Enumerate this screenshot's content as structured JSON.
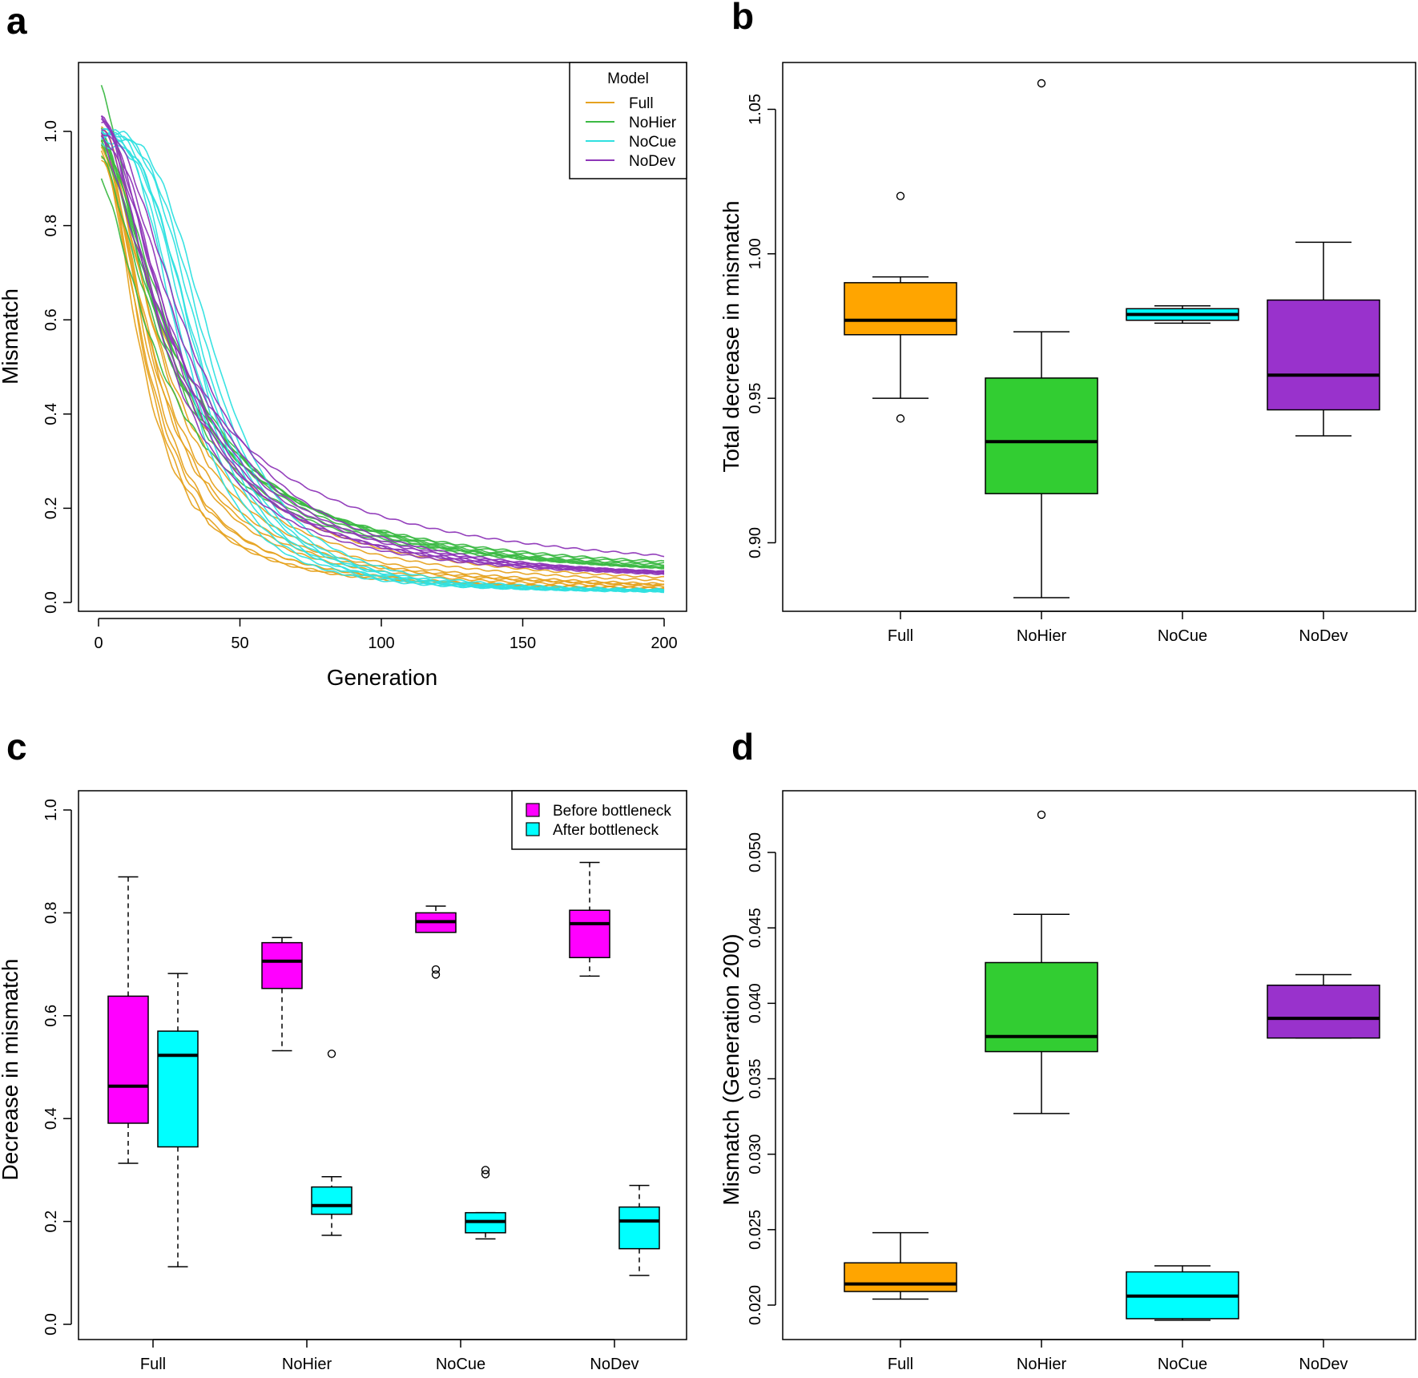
{
  "figure": {
    "panel_letters": [
      "a",
      "b",
      "c",
      "d"
    ]
  },
  "chart_data": [
    {
      "panel": "a",
      "type": "line",
      "xlabel": "Generation",
      "ylabel": "Mismatch",
      "xlim": [
        0,
        200
      ],
      "ylim": [
        0,
        1.1
      ],
      "xticks": [
        "0",
        "50",
        "100",
        "150",
        "200"
      ],
      "yticks": [
        "0.0",
        "0.2",
        "0.4",
        "0.6",
        "0.8",
        "1.0"
      ],
      "legend": {
        "title": "Model",
        "position": "top-right",
        "entries": [
          {
            "label": "Full",
            "color": "#e6a21f"
          },
          {
            "label": "NoHier",
            "color": "#3cb944"
          },
          {
            "label": "NoCue",
            "color": "#2fe0e0"
          },
          {
            "label": "NoDev",
            "color": "#8e36b8"
          }
        ]
      },
      "series": [
        {
          "name": "Full",
          "color": "#e6a21f",
          "runs": [
            {
              "start": 0.98,
              "end": 0.02,
              "half": 16,
              "shape": 1.9
            },
            {
              "start": 0.96,
              "end": 0.021,
              "half": 18,
              "shape": 1.9
            },
            {
              "start": 1.0,
              "end": 0.022,
              "half": 20,
              "shape": 1.8
            },
            {
              "start": 0.95,
              "end": 0.02,
              "half": 22,
              "shape": 1.8
            },
            {
              "start": 0.99,
              "end": 0.021,
              "half": 24,
              "shape": 1.7
            },
            {
              "start": 0.97,
              "end": 0.022,
              "half": 19,
              "shape": 2.0
            },
            {
              "start": 1.02,
              "end": 0.023,
              "half": 26,
              "shape": 1.7
            },
            {
              "start": 0.94,
              "end": 0.021,
              "half": 21,
              "shape": 1.9
            },
            {
              "start": 1.0,
              "end": 0.02,
              "half": 23,
              "shape": 1.8
            },
            {
              "start": 0.98,
              "end": 0.024,
              "half": 17,
              "shape": 2.0
            }
          ]
        },
        {
          "name": "NoHier",
          "color": "#3cb944",
          "runs": [
            {
              "start": 1.1,
              "end": 0.051,
              "half": 22,
              "shape": 1.6
            },
            {
              "start": 0.91,
              "end": 0.04,
              "half": 24,
              "shape": 1.5
            },
            {
              "start": 0.96,
              "end": 0.046,
              "half": 26,
              "shape": 1.5
            },
            {
              "start": 1.0,
              "end": 0.038,
              "half": 28,
              "shape": 1.6
            },
            {
              "start": 0.98,
              "end": 0.037,
              "half": 30,
              "shape": 1.7
            },
            {
              "start": 1.02,
              "end": 0.042,
              "half": 25,
              "shape": 1.5
            },
            {
              "start": 0.99,
              "end": 0.036,
              "half": 27,
              "shape": 1.6
            },
            {
              "start": 0.97,
              "end": 0.033,
              "half": 29,
              "shape": 1.6
            }
          ]
        },
        {
          "name": "NoCue",
          "color": "#2fe0e0",
          "runs": [
            {
              "start": 1.0,
              "end": 0.021,
              "half": 30,
              "shape": 3.0
            },
            {
              "start": 0.99,
              "end": 0.02,
              "half": 32,
              "shape": 3.0
            },
            {
              "start": 1.0,
              "end": 0.022,
              "half": 34,
              "shape": 3.1
            },
            {
              "start": 0.98,
              "end": 0.019,
              "half": 36,
              "shape": 3.2
            },
            {
              "start": 1.0,
              "end": 0.02,
              "half": 38,
              "shape": 3.2
            },
            {
              "start": 0.99,
              "end": 0.021,
              "half": 40,
              "shape": 3.3
            },
            {
              "start": 1.0,
              "end": 0.022,
              "half": 42,
              "shape": 3.3
            },
            {
              "start": 0.97,
              "end": 0.019,
              "half": 37,
              "shape": 3.1
            }
          ]
        },
        {
          "name": "NoDev",
          "color": "#8e36b8",
          "runs": [
            {
              "start": 1.04,
              "end": 0.039,
              "half": 24,
              "shape": 1.8
            },
            {
              "start": 1.01,
              "end": 0.041,
              "half": 26,
              "shape": 1.8
            },
            {
              "start": 1.03,
              "end": 0.038,
              "half": 28,
              "shape": 1.9
            },
            {
              "start": 0.99,
              "end": 0.04,
              "half": 30,
              "shape": 1.9
            },
            {
              "start": 1.0,
              "end": 0.042,
              "half": 32,
              "shape": 2.0
            },
            {
              "start": 1.02,
              "end": 0.037,
              "half": 34,
              "shape": 2.0
            },
            {
              "start": 1.0,
              "end": 0.039,
              "half": 29,
              "shape": 1.4
            },
            {
              "start": 1.03,
              "end": 0.041,
              "half": 27,
              "shape": 1.9
            }
          ]
        }
      ]
    },
    {
      "panel": "b",
      "type": "box",
      "xlabel": "",
      "ylabel": "Total decrease in mismatch",
      "ylim": [
        0.881,
        1.061
      ],
      "yticks": [
        "0.90",
        "0.95",
        "1.00",
        "1.05"
      ],
      "ytick_values": [
        0.9,
        0.95,
        1.0,
        1.05
      ],
      "categories": [
        "Full",
        "NoHier",
        "NoCue",
        "NoDev"
      ],
      "boxes": [
        {
          "name": "Full",
          "color": "#ffa500",
          "lo": 0.95,
          "q1": 0.972,
          "median": 0.977,
          "q3": 0.99,
          "hi": 0.992,
          "outliers": [
            1.02,
            0.943
          ]
        },
        {
          "name": "NoHier",
          "color": "#32cd32",
          "lo": 0.881,
          "q1": 0.917,
          "median": 0.935,
          "q3": 0.957,
          "hi": 0.973,
          "outliers": [
            1.059
          ]
        },
        {
          "name": "NoCue",
          "color": "#00ffff",
          "lo": 0.976,
          "q1": 0.977,
          "median": 0.979,
          "q3": 0.981,
          "hi": 0.982,
          "outliers": []
        },
        {
          "name": "NoDev",
          "color": "#9932cc",
          "lo": 0.937,
          "q1": 0.946,
          "median": 0.958,
          "q3": 0.984,
          "hi": 1.004,
          "outliers": []
        }
      ]
    },
    {
      "panel": "c",
      "type": "box",
      "xlabel": "",
      "ylabel": "Decrease in mismatch",
      "ylim": [
        0.0,
        1.0
      ],
      "yticks": [
        "0.0",
        "0.2",
        "0.4",
        "0.6",
        "0.8",
        "1.0"
      ],
      "ytick_values": [
        0.0,
        0.2,
        0.4,
        0.6,
        0.8,
        1.0
      ],
      "categories": [
        "Full",
        "NoHier",
        "NoCue",
        "NoDev"
      ],
      "legend": {
        "position": "top-right",
        "entries": [
          {
            "label": "Before bottleneck",
            "color": "#ff00ff"
          },
          {
            "label": "After bottleneck",
            "color": "#00ffff"
          }
        ]
      },
      "series": [
        {
          "name": "Before bottleneck",
          "color": "#ff00ff",
          "boxes": [
            {
              "category": "Full",
              "lo": 0.313,
              "q1": 0.391,
              "median": 0.463,
              "q3": 0.638,
              "hi": 0.87,
              "outliers": []
            },
            {
              "category": "NoHier",
              "lo": 0.532,
              "q1": 0.653,
              "median": 0.706,
              "q3": 0.742,
              "hi": 0.752,
              "outliers": []
            },
            {
              "category": "NoCue",
              "lo": 0.762,
              "q1": 0.762,
              "median": 0.783,
              "q3": 0.8,
              "hi": 0.813,
              "outliers": [
                0.69,
                0.68
              ]
            },
            {
              "category": "NoDev",
              "lo": 0.677,
              "q1": 0.713,
              "median": 0.779,
              "q3": 0.805,
              "hi": 0.898,
              "outliers": []
            }
          ]
        },
        {
          "name": "After bottleneck",
          "color": "#00ffff",
          "boxes": [
            {
              "category": "Full",
              "lo": 0.112,
              "q1": 0.345,
              "median": 0.523,
              "q3": 0.57,
              "hi": 0.682,
              "outliers": []
            },
            {
              "category": "NoHier",
              "lo": 0.173,
              "q1": 0.214,
              "median": 0.231,
              "q3": 0.267,
              "hi": 0.287,
              "outliers": [
                0.526
              ]
            },
            {
              "category": "NoCue",
              "lo": 0.166,
              "q1": 0.178,
              "median": 0.2,
              "q3": 0.217,
              "hi": 0.217,
              "outliers": [
                0.3,
                0.292
              ]
            },
            {
              "category": "NoDev",
              "lo": 0.095,
              "q1": 0.147,
              "median": 0.201,
              "q3": 0.228,
              "hi": 0.27,
              "outliers": []
            }
          ]
        }
      ]
    },
    {
      "panel": "d",
      "type": "box",
      "xlabel": "",
      "ylabel": "Mismatch (Generation 200)",
      "ylim": [
        0.0189,
        0.0525
      ],
      "yticks": [
        "0.020",
        "0.025",
        "0.030",
        "0.035",
        "0.040",
        "0.045",
        "0.050"
      ],
      "ytick_values": [
        0.02,
        0.025,
        0.03,
        0.035,
        0.04,
        0.045,
        0.05
      ],
      "categories": [
        "Full",
        "NoHier",
        "NoCue",
        "NoDev"
      ],
      "boxes": [
        {
          "name": "Full",
          "color": "#ffa500",
          "lo": 0.0204,
          "q1": 0.0209,
          "median": 0.0214,
          "q3": 0.0228,
          "hi": 0.0248,
          "outliers": []
        },
        {
          "name": "NoHier",
          "color": "#32cd32",
          "lo": 0.0327,
          "q1": 0.0368,
          "median": 0.0378,
          "q3": 0.0427,
          "hi": 0.0459,
          "outliers": [
            0.0525
          ]
        },
        {
          "name": "NoCue",
          "color": "#00ffff",
          "lo": 0.019,
          "q1": 0.0191,
          "median": 0.0206,
          "q3": 0.0222,
          "hi": 0.0226,
          "outliers": []
        },
        {
          "name": "NoDev",
          "color": "#9932cc",
          "lo": 0.0377,
          "q1": 0.0377,
          "median": 0.039,
          "q3": 0.0412,
          "hi": 0.0419,
          "outliers": []
        }
      ]
    }
  ]
}
